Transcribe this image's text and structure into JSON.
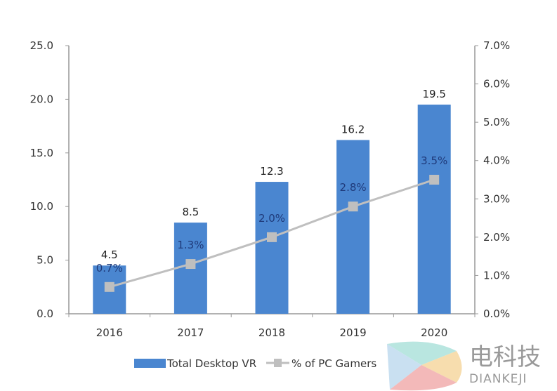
{
  "chart_data": {
    "type": "bar",
    "title": "",
    "xlabel": "",
    "categories": [
      "2016",
      "2017",
      "2018",
      "2019",
      "2020"
    ],
    "series": [
      {
        "name": "Total Desktop VR",
        "type": "bar",
        "axis": "left",
        "values": [
          4.5,
          8.5,
          12.3,
          16.2,
          19.5
        ],
        "labels": [
          "4.5",
          "8.5",
          "12.3",
          "16.2",
          "19.5"
        ],
        "color": "#4a86d0"
      },
      {
        "name": "% of PC Gamers",
        "type": "line",
        "axis": "right",
        "values": [
          0.7,
          1.3,
          2.0,
          2.8,
          3.5
        ],
        "labels": [
          "0.7%",
          "1.3%",
          "2.0%",
          "2.8%",
          "3.5%"
        ],
        "color": "#bfbfbf"
      }
    ],
    "ylim": [
      0,
      25
    ],
    "yticks": [
      "0.0",
      "5.0",
      "10.0",
      "15.0",
      "20.0",
      "25.0"
    ],
    "y2lim": [
      0,
      7
    ],
    "y2ticks": [
      "0.0%",
      "1.0%",
      "2.0%",
      "3.0%",
      "4.0%",
      "5.0%",
      "6.0%",
      "7.0%"
    ],
    "legend_position": "bottom",
    "grid": false
  },
  "watermark": {
    "cn": "电科技",
    "en": "DIANKEJI"
  }
}
